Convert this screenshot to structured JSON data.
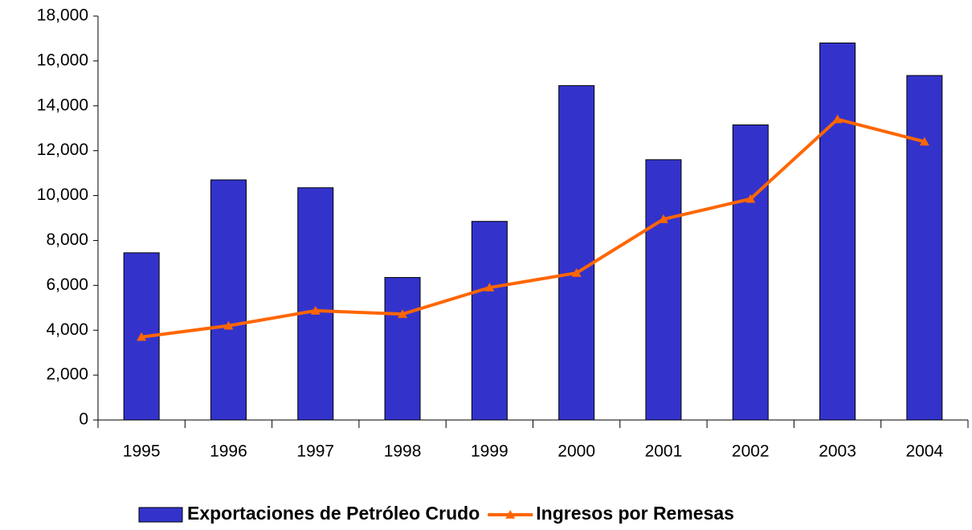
{
  "chart_data": {
    "type": "bar",
    "categories": [
      "1995",
      "1996",
      "1997",
      "1998",
      "1999",
      "2000",
      "2001",
      "2002",
      "2003",
      "2004"
    ],
    "series": [
      {
        "name": "Exportaciones de Petróleo Crudo",
        "type": "bar",
        "color": "#3333cc",
        "values": [
          7450,
          10700,
          10350,
          6350,
          8850,
          14900,
          11600,
          13150,
          16800,
          15350
        ]
      },
      {
        "name": "Ingresos por Remesas",
        "type": "line",
        "color": "#ff6600",
        "values": [
          3700,
          4200,
          4870,
          4720,
          5900,
          6550,
          8950,
          9850,
          13400,
          12400
        ]
      }
    ],
    "ylim": [
      0,
      18000
    ],
    "yticks": [
      0,
      {
        "value": 2000,
        "label": "2,000"
      },
      {
        "value": 4000,
        "label": "4,000"
      },
      {
        "value": 6000,
        "label": "6,000"
      },
      {
        "value": 8000,
        "label": "8,000"
      },
      {
        "value": 10000,
        "label": "10,000"
      },
      {
        "value": 12000,
        "label": "12,000"
      },
      {
        "value": 14000,
        "label": "14,000"
      },
      {
        "value": 16000,
        "label": "16,000"
      },
      {
        "value": 18000,
        "label": "18,000"
      }
    ],
    "legend": "bottom"
  }
}
